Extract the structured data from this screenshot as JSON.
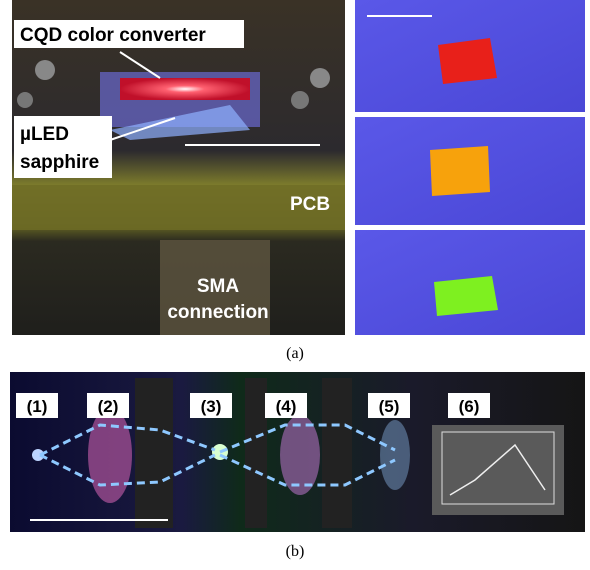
{
  "panel_a": {
    "labels": {
      "cqd": "CQD color converter",
      "uled": [
        "µLED",
        "sapphire"
      ],
      "pcb": "PCB",
      "sma": [
        "SMA",
        "connection"
      ]
    },
    "caption": "(a)"
  },
  "panel_b": {
    "stage_labels": [
      "(1)",
      "(2)",
      "(3)",
      "(4)",
      "(5)",
      "(6)"
    ],
    "caption": "(b)"
  }
}
